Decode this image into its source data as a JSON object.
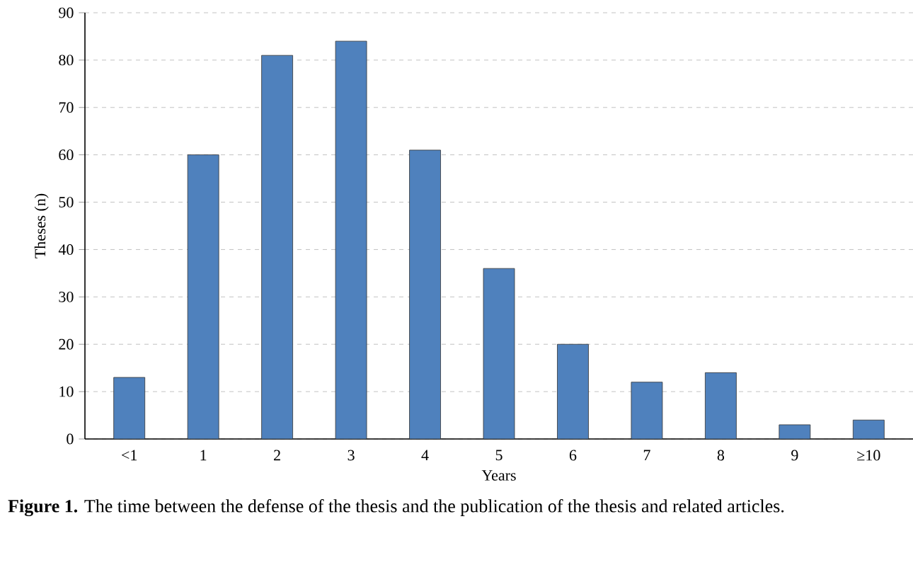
{
  "chart_data": {
    "type": "bar",
    "xlabel": "Years",
    "ylabel": "Theses (n)",
    "categories": [
      "<1",
      "1",
      "2",
      "3",
      "4",
      "5",
      "6",
      "7",
      "8",
      "9",
      "≥10"
    ],
    "values": [
      13,
      60,
      81,
      84,
      61,
      36,
      20,
      12,
      14,
      3,
      4
    ],
    "color": "#4f81bd",
    "ylim": [
      0,
      90
    ],
    "yticks": [
      0,
      10,
      20,
      30,
      40,
      50,
      60,
      70,
      80,
      90
    ],
    "grid": "y",
    "annotations": [
      "**Figure 1.** The time between the defense of the thesis and the publication of the thesis and related articles."
    ]
  }
}
